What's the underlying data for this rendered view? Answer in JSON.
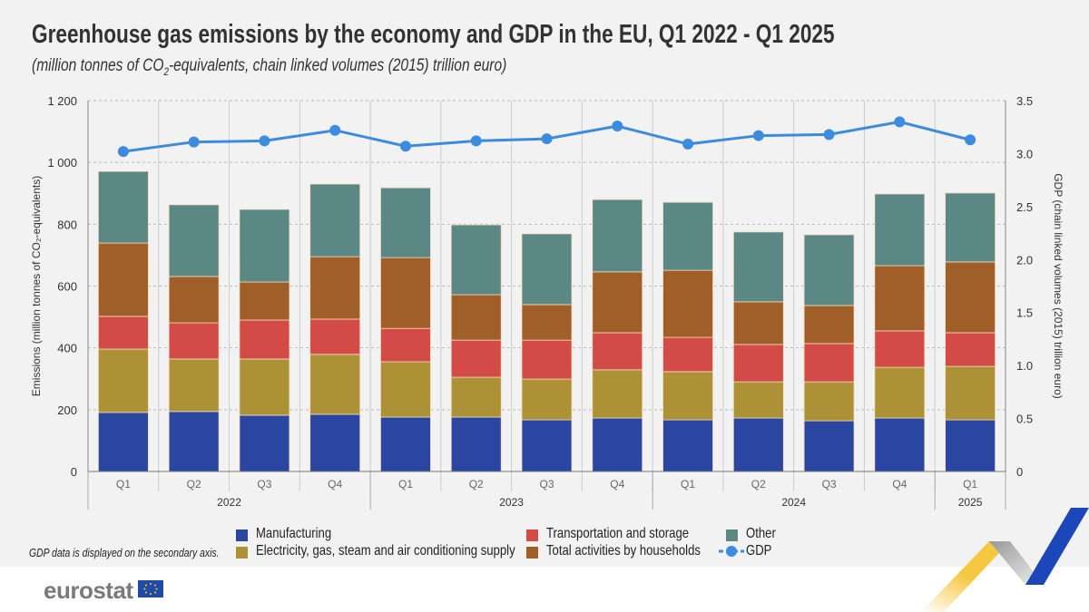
{
  "title": "Greenhouse gas emissions by the economy and GDP in the EU, Q1 2022 - Q1 2025",
  "subtitle_pre": "(million tonnes of CO",
  "subtitle_sub": "2",
  "subtitle_post": "-equivalents, chain linked volumes (2015) trillion euro)",
  "note": "GDP data is displayed on the secondary axis.",
  "logo": "eurostat",
  "colors": {
    "Manufacturing": "#2b46a0",
    "Electricity": "#ad9136",
    "Transportation": "#d34b47",
    "Households": "#a05f29",
    "Other": "#5b8885",
    "GDP": "#3d8be0"
  },
  "chart_data": {
    "type": "bar",
    "stacked": true,
    "title": "Greenhouse gas emissions by the economy and GDP in the EU, Q1 2022 - Q1 2025",
    "categories": [
      "Q1",
      "Q2",
      "Q3",
      "Q4",
      "Q1",
      "Q2",
      "Q3",
      "Q4",
      "Q1",
      "Q2",
      "Q3",
      "Q4",
      "Q1"
    ],
    "years": [
      {
        "label": "2022",
        "span": 4
      },
      {
        "label": "2023",
        "span": 4
      },
      {
        "label": "2024",
        "span": 4
      },
      {
        "label": "2025",
        "span": 1
      }
    ],
    "ylabel": "Emissions (million tonnes of CO₂-equivalents)",
    "y2label": "GDP (chain linked volumes (2015) trillion euro)",
    "ylim": [
      0,
      1200
    ],
    "yticks": [
      "0",
      "200",
      "400",
      "600",
      "800",
      "1 000",
      "1 200"
    ],
    "y2lim": [
      0,
      3.5
    ],
    "y2ticks": [
      "0",
      "0.5",
      "1.0",
      "1.5",
      "2.0",
      "2.5",
      "3.0",
      "3.5"
    ],
    "grid": true,
    "legend_position": "bottom",
    "series": [
      {
        "name": "Manufacturing",
        "values": [
          191,
          194,
          182,
          185,
          176,
          176,
          167,
          173,
          167,
          173,
          164,
          173,
          167
        ]
      },
      {
        "name": "Electricity, gas, steam and air conditioning supply",
        "values": [
          205,
          170,
          182,
          194,
          179,
          129,
          132,
          156,
          156,
          117,
          126,
          164,
          173
        ]
      },
      {
        "name": "Transportation and storage",
        "values": [
          106,
          117,
          126,
          114,
          108,
          120,
          126,
          120,
          111,
          121,
          124,
          118,
          109
        ]
      },
      {
        "name": "Total activities by households",
        "values": [
          237,
          150,
          123,
          202,
          229,
          147,
          115,
          197,
          217,
          138,
          123,
          211,
          229
        ]
      },
      {
        "name": "Other",
        "values": [
          232,
          232,
          235,
          235,
          226,
          226,
          229,
          234,
          220,
          226,
          229,
          232,
          223
        ]
      }
    ],
    "line_series": {
      "name": "GDP",
      "axis": "secondary",
      "values": [
        3.02,
        3.11,
        3.12,
        3.22,
        3.07,
        3.12,
        3.14,
        3.26,
        3.09,
        3.17,
        3.18,
        3.3,
        3.13
      ]
    }
  },
  "legend": [
    {
      "label": "Manufacturing"
    },
    {
      "label": "Electricity, gas, steam and air conditioning supply"
    },
    {
      "label": "Transportation and storage"
    },
    {
      "label": "Total activities by households"
    },
    {
      "label": "Other"
    },
    {
      "label": "GDP"
    }
  ]
}
